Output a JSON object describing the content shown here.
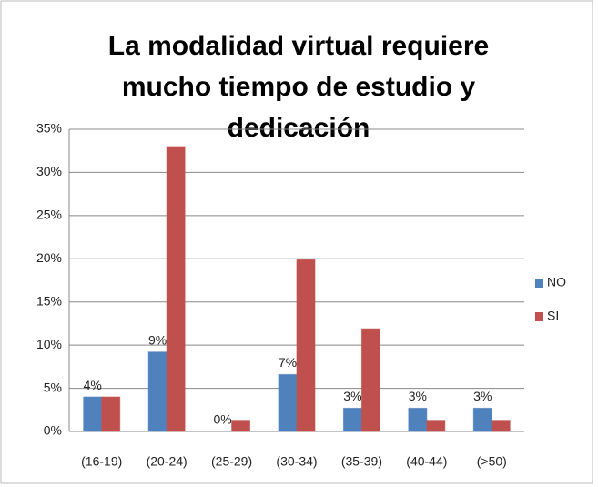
{
  "chart_data": {
    "type": "bar",
    "title": "La modalidad virtual requiere mucho tiempo de estudio y dedicación",
    "categories": [
      "(16-19)",
      "(20-24)",
      "(25-29)",
      "(30-34)",
      "(35-39)",
      "(40-44)",
      "(>50)"
    ],
    "series": [
      {
        "name": "NO",
        "color": "#4f81bd",
        "values": [
          4,
          9.2,
          0,
          6.6,
          2.7,
          2.7,
          2.7
        ],
        "value_labels": [
          "4%",
          "9%",
          "0%",
          "7%",
          "3%",
          "3%",
          "3%"
        ]
      },
      {
        "name": "SI",
        "color": "#c0504d",
        "values": [
          4,
          33,
          1.3,
          19.9,
          11.9,
          1.3,
          1.3
        ]
      }
    ],
    "ylim": [
      0,
      35
    ],
    "yticks": [
      {
        "value": 0,
        "label": "0%"
      },
      {
        "value": 5,
        "label": "5%"
      },
      {
        "value": 10,
        "label": "10%"
      },
      {
        "value": 15,
        "label": "15%"
      },
      {
        "value": 20,
        "label": "20%"
      },
      {
        "value": 25,
        "label": "25%"
      },
      {
        "value": 30,
        "label": "30%"
      },
      {
        "value": 35,
        "label": "35%"
      }
    ],
    "grid": true,
    "legend": "right"
  }
}
